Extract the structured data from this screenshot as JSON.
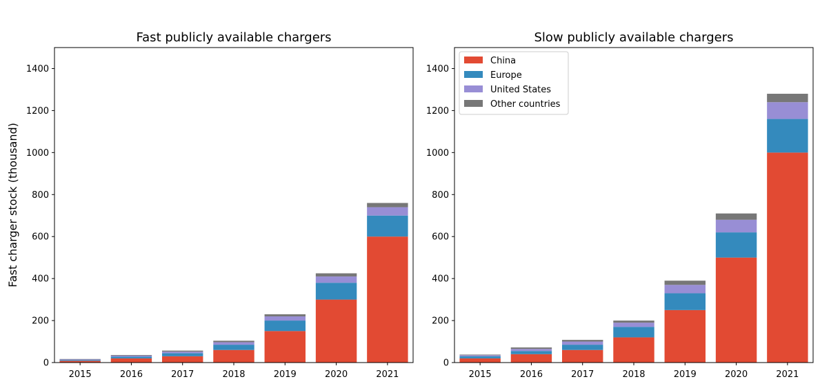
{
  "colors": {
    "China": "#e24a33",
    "Europe": "#348abd",
    "United States": "#988ed5",
    "Other countries": "#777777"
  },
  "chart_data": [
    {
      "type": "bar",
      "stacked": true,
      "title": "Fast publicly available chargers",
      "xlabel": "",
      "ylabel": "Fast charger stock (thousand)",
      "categories": [
        "2015",
        "2016",
        "2017",
        "2018",
        "2019",
        "2020",
        "2021"
      ],
      "ylim": [
        0,
        1500
      ],
      "yticks": [
        0,
        200,
        400,
        600,
        800,
        1000,
        1200,
        1400
      ],
      "legend": false,
      "series": [
        {
          "name": "China",
          "values": [
            8,
            20,
            30,
            60,
            150,
            300,
            600
          ]
        },
        {
          "name": "Europe",
          "values": [
            4,
            8,
            15,
            25,
            50,
            80,
            100
          ]
        },
        {
          "name": "United States",
          "values": [
            3,
            5,
            7,
            12,
            20,
            30,
            40
          ]
        },
        {
          "name": "Other countries",
          "values": [
            2,
            3,
            5,
            7,
            10,
            15,
            20
          ]
        }
      ]
    },
    {
      "type": "bar",
      "stacked": true,
      "title": "Slow publicly available chargers",
      "xlabel": "",
      "ylabel": "",
      "categories": [
        "2015",
        "2016",
        "2017",
        "2018",
        "2019",
        "2020",
        "2021"
      ],
      "ylim": [
        0,
        1500
      ],
      "yticks": [
        0,
        200,
        400,
        600,
        800,
        1000,
        1200,
        1400
      ],
      "legend": true,
      "legend_position": "top-left",
      "series": [
        {
          "name": "China",
          "values": [
            20,
            40,
            60,
            120,
            250,
            500,
            1000
          ]
        },
        {
          "name": "Europe",
          "values": [
            10,
            15,
            25,
            50,
            80,
            120,
            160
          ]
        },
        {
          "name": "United States",
          "values": [
            5,
            10,
            15,
            20,
            40,
            60,
            80
          ]
        },
        {
          "name": "Other countries",
          "values": [
            3,
            7,
            8,
            10,
            20,
            30,
            40
          ]
        }
      ]
    }
  ]
}
